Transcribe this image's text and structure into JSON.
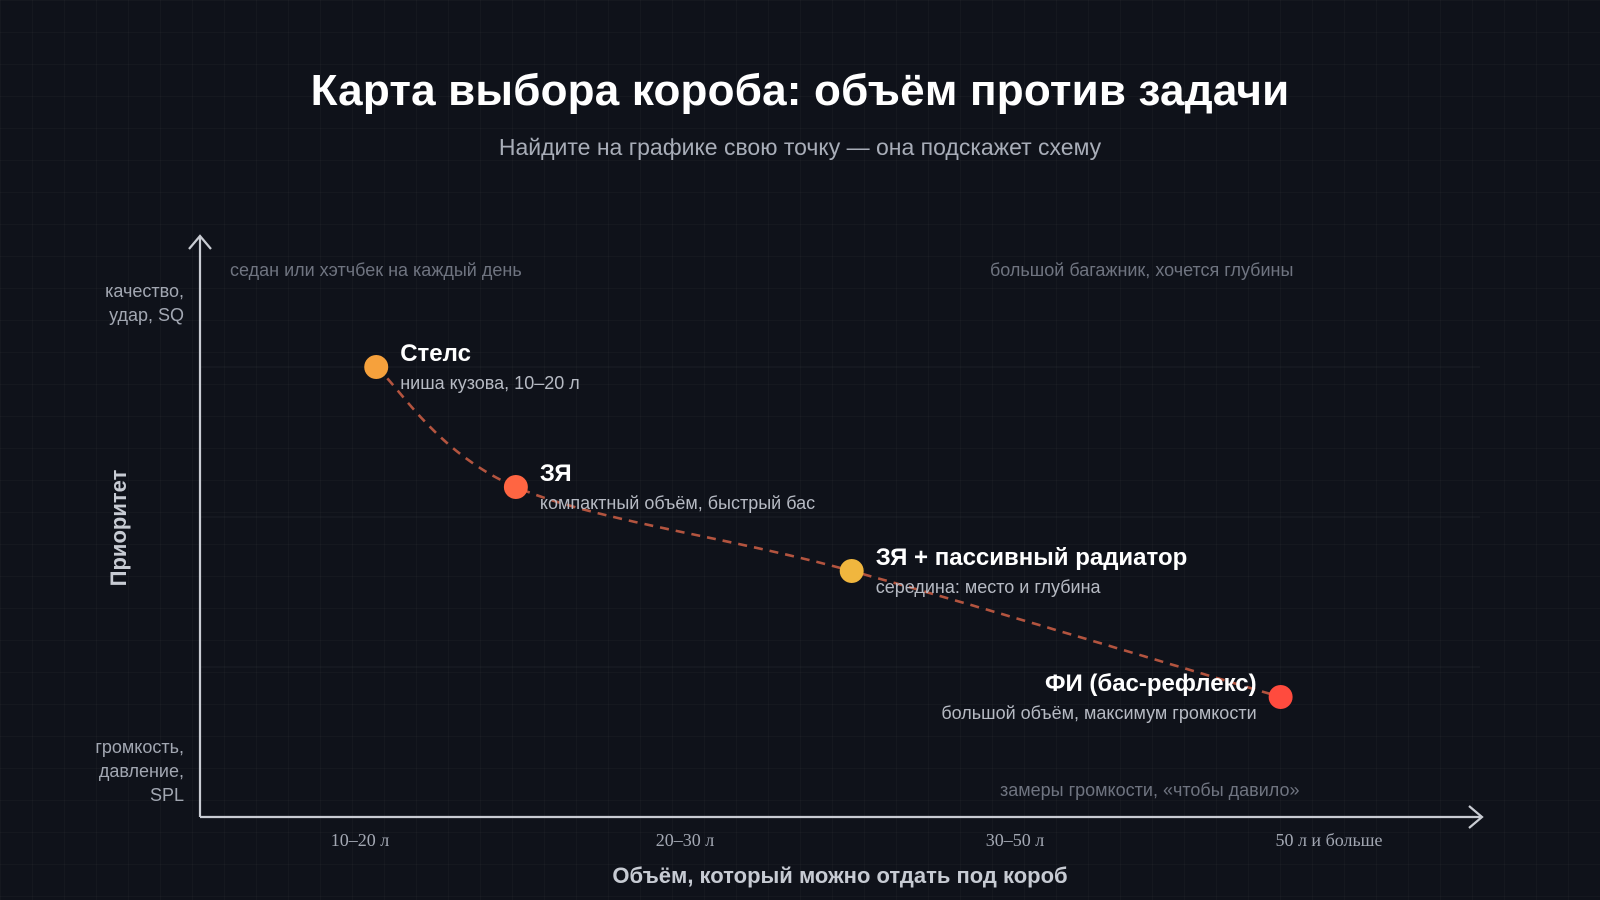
{
  "chart_data": {
    "type": "scatter",
    "title": "Карта выбора короба: объём против задачи",
    "subtitle": "Найдите на графике свою точку — она подскажет схему",
    "xlabel": "Объём, который можно отдать под короб",
    "ylabel": "Приоритет",
    "x_categories": [
      "10–20 л",
      "20–30 л",
      "30–50 л",
      "50 л и больше"
    ],
    "y_top_label": [
      "качество,",
      "удар, SQ"
    ],
    "y_bottom_label": [
      "громкость,",
      "давление,",
      "SPL"
    ],
    "xlim": [
      0,
      4
    ],
    "ylim": [
      0,
      1
    ],
    "grid": true,
    "corner_notes": {
      "top_left": "седан или хэтчбек на каждый день",
      "top_right": "большой багажник, хочется глубины",
      "bottom_right": "замеры громкости, «чтобы давило»"
    },
    "points": [
      {
        "name": "Стелс",
        "desc": "ниша кузова, 10–20 л",
        "x": 0.53,
        "y": 0.75,
        "color": "#f6a13c",
        "label_side": "right"
      },
      {
        "name": "ЗЯ",
        "desc": "компактный объём, быстрый бас",
        "x": 0.95,
        "y": 0.55,
        "color": "#ff6542",
        "label_side": "right"
      },
      {
        "name": "ЗЯ + пассивный радиатор",
        "desc": "середина: место и глубина",
        "x": 1.96,
        "y": 0.41,
        "color": "#f0b63e",
        "label_side": "right"
      },
      {
        "name": "ФИ (бас-рефлекс)",
        "desc": "большой объём, максимум громкости",
        "x": 3.25,
        "y": 0.2,
        "color": "#ff4b3e",
        "label_side": "left"
      }
    ],
    "trend_line": {
      "style": "dashed",
      "color": "#b3543f"
    }
  }
}
